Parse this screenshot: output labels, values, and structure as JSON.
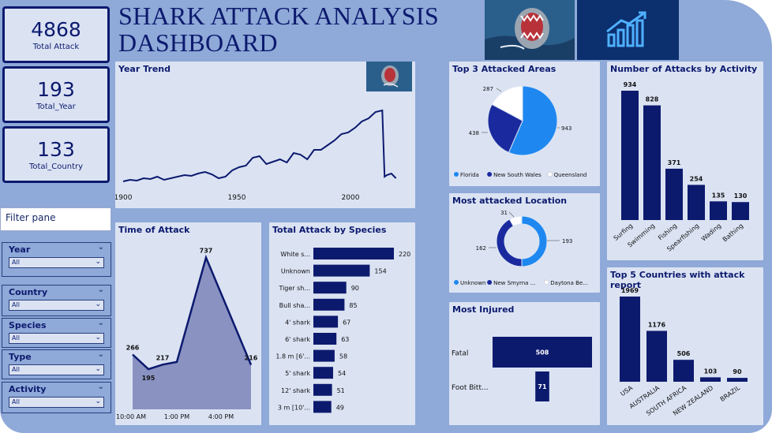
{
  "title": "SHARK ATTACK ANALYSIS DASHBOARD",
  "kpis": [
    {
      "value": "4868",
      "label": "Total Attack"
    },
    {
      "value": "193",
      "label": "Total_Year"
    },
    {
      "value": "133",
      "label": "Total_Country"
    }
  ],
  "filter_pane_label": "Filter pane",
  "slicers": [
    {
      "label": "Year",
      "selected": "All"
    },
    {
      "label": "Country",
      "selected": "All"
    },
    {
      "label": "Species",
      "selected": "All"
    },
    {
      "label": "Type",
      "selected": "All"
    },
    {
      "label": "Activity",
      "selected": "All"
    }
  ],
  "icons": {
    "shark_photo": "shark-photo-icon",
    "chart_growth": "chart-growth-icon",
    "chevron": "chevron-down-icon"
  },
  "colors": {
    "navy": "#0c1a6e",
    "panel": "#dbe3f3",
    "background": "#8fa9d8",
    "pie_blue": "#1e88f0",
    "pie_navy": "#1a2a9e",
    "white": "#ffffff"
  },
  "chart_data": [
    {
      "id": "year_trend",
      "type": "line",
      "title": "Year Trend",
      "xlabel": "",
      "ylabel": "",
      "x_ticks": [
        "1900",
        "1950",
        "2000"
      ],
      "x": [
        1900,
        1903,
        1906,
        1909,
        1912,
        1915,
        1918,
        1921,
        1924,
        1927,
        1930,
        1933,
        1936,
        1939,
        1942,
        1945,
        1948,
        1951,
        1954,
        1957,
        1960,
        1963,
        1966,
        1969,
        1972,
        1975,
        1978,
        1981,
        1984,
        1987,
        1990,
        1993,
        1996,
        1999,
        2002,
        2005,
        2008,
        2011,
        2014,
        2015,
        2016,
        2018,
        2020
      ],
      "values": [
        8,
        10,
        9,
        12,
        11,
        14,
        10,
        12,
        14,
        16,
        15,
        18,
        20,
        17,
        12,
        14,
        22,
        26,
        28,
        38,
        40,
        30,
        33,
        36,
        32,
        44,
        42,
        36,
        48,
        48,
        54,
        60,
        68,
        70,
        76,
        84,
        88,
        96,
        98,
        14,
        16,
        18,
        12
      ],
      "ylim": [
        0,
        110
      ]
    },
    {
      "id": "time_of_attack",
      "type": "area",
      "title": "Time of Attack",
      "x_ticks": [
        "10:00 AM",
        "1:00 PM",
        "4:00 PM"
      ],
      "x": [
        "10:00 AM",
        "11:00 AM",
        "12:00 PM",
        "1:00 PM",
        "4:00 PM",
        "5:00 PM"
      ],
      "values": [
        266,
        195,
        217,
        230,
        737,
        216
      ],
      "labels": [
        "266",
        "195",
        "217",
        "",
        "737",
        "216"
      ],
      "ylim": [
        0,
        800
      ]
    },
    {
      "id": "attack_by_species",
      "type": "bar",
      "title": "Total Attack by Species",
      "categories": [
        "White s...",
        "Unknown",
        "Tiger sh...",
        "Bull sha...",
        "4' shark",
        "6' shark",
        "1.8 m [6'...",
        "5' shark",
        "12' shark",
        "3 m [10'..."
      ],
      "values": [
        220,
        154,
        90,
        85,
        67,
        63,
        58,
        54,
        51,
        49
      ],
      "orientation": "horizontal"
    },
    {
      "id": "top3_areas",
      "type": "pie",
      "title": "Top 3 Attacked Areas",
      "categories": [
        "Florida",
        "New South Wales",
        "Queensland"
      ],
      "values": [
        943,
        438,
        287
      ],
      "colors": [
        "#1e88f0",
        "#1a2a9e",
        "#ffffff"
      ]
    },
    {
      "id": "most_attacked_location",
      "type": "pie",
      "donut": true,
      "title": "Most attacked Location",
      "categories": [
        "Unknown",
        "New Smyrna ...",
        "Daytona Be..."
      ],
      "values": [
        193,
        162,
        31
      ],
      "colors": [
        "#1e88f0",
        "#1a2a9e",
        "#ffffff"
      ]
    },
    {
      "id": "most_injured",
      "type": "bar",
      "title": "Most Injured",
      "categories": [
        "Fatal",
        "Foot Bitt..."
      ],
      "values": [
        508,
        71
      ],
      "orientation": "horizontal"
    },
    {
      "id": "attacks_by_activity",
      "type": "bar",
      "title": "Number of Attacks by Activity",
      "categories": [
        "Surfing",
        "Swimming",
        "Fishing",
        "Spearfishing",
        "Wading",
        "Bathing"
      ],
      "values": [
        934,
        828,
        371,
        254,
        135,
        130
      ]
    },
    {
      "id": "top5_countries",
      "type": "bar",
      "title": "Top 5 Countries with attack report",
      "categories": [
        "USA",
        "AUSTRALIA",
        "SOUTH AFRICA",
        "NEW ZEALAND",
        "BRAZIL"
      ],
      "values": [
        1969,
        1176,
        506,
        103,
        90
      ]
    }
  ]
}
